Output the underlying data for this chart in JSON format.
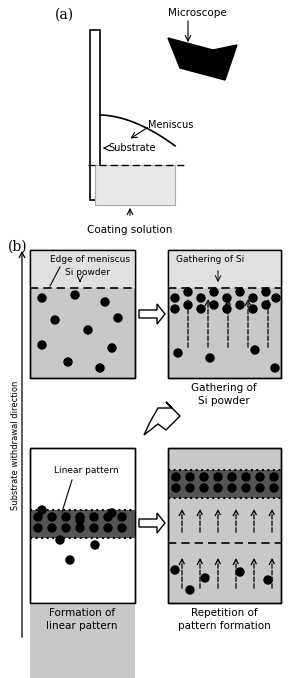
{
  "bg_color": "#ffffff",
  "gray_med": "#c8c8c8",
  "gray_light": "#e0e0e0",
  "dark_band": "#555555",
  "dot_color": "#111111",
  "title_a": "(a)",
  "title_b": "(b)",
  "label_microscope": "Microscope",
  "label_meniscus": "Meniscus",
  "label_substrate": "Substrate",
  "label_coating": "Coating solution",
  "label_edge": "Edge of meniscus",
  "label_si": "Si powder",
  "label_gathering_si": "Gathering of Si",
  "label_gathering_caption": "Gathering of\nSi powder",
  "label_linear": "Linear pattern",
  "label_formation": "Formation of\nlinear pattern",
  "label_repetition": "Repetition of\npattern formation",
  "label_withdrawal": "Substrate withdrawal direction"
}
